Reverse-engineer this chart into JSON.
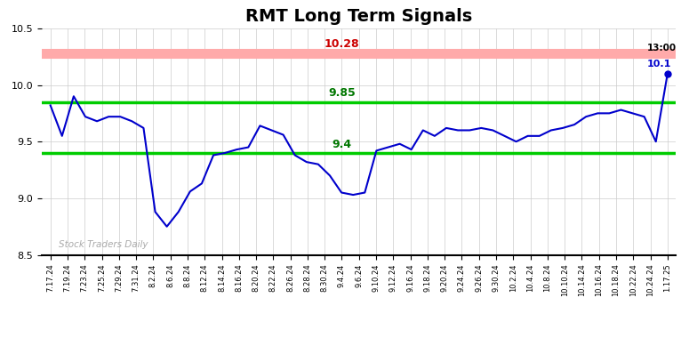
{
  "title": "RMT Long Term Signals",
  "title_fontsize": 14,
  "title_fontweight": "bold",
  "background_color": "#ffffff",
  "line_color": "#0000cc",
  "line_width": 1.5,
  "ylim": [
    8.5,
    10.5
  ],
  "yticks": [
    8.5,
    9.0,
    9.5,
    10.0,
    10.5
  ],
  "hline_red": 10.28,
  "hline_green_upper": 9.85,
  "hline_green_lower": 9.4,
  "hline_red_color": "#ffaaaa",
  "hline_green_color": "#00cc00",
  "label_red_text": "10.28",
  "label_red_color": "#cc0000",
  "label_green_upper_text": "9.85",
  "label_green_lower_text": "9.4",
  "label_green_color": "#007700",
  "watermark_text": "Stock Traders Daily",
  "watermark_color": "#aaaaaa",
  "annotation_time": "13:00",
  "annotation_value": "10.1",
  "annotation_color_time": "#000000",
  "annotation_color_value": "#0000cc",
  "xtick_labels": [
    "7.17.24",
    "7.19.24",
    "7.23.24",
    "7.25.24",
    "7.29.24",
    "7.31.24",
    "8.2.24",
    "8.6.24",
    "8.8.24",
    "8.12.24",
    "8.14.24",
    "8.16.24",
    "8.20.24",
    "8.22.24",
    "8.26.24",
    "8.28.24",
    "8.30.24",
    "9.4.24",
    "9.6.24",
    "9.10.24",
    "9.12.24",
    "9.16.24",
    "9.18.24",
    "9.20.24",
    "9.24.24",
    "9.26.24",
    "9.30.24",
    "10.2.24",
    "10.4.24",
    "10.8.24",
    "10.10.24",
    "10.14.24",
    "10.16.24",
    "10.18.24",
    "10.22.24",
    "10.24.24",
    "1.17.25"
  ],
  "ydata": [
    9.82,
    9.55,
    9.9,
    9.72,
    9.68,
    9.72,
    9.72,
    9.68,
    9.62,
    8.88,
    8.75,
    8.88,
    9.06,
    9.13,
    9.38,
    9.4,
    9.43,
    9.45,
    9.64,
    9.6,
    9.56,
    9.38,
    9.32,
    9.3,
    9.2,
    9.05,
    9.03,
    9.05,
    9.42,
    9.45,
    9.48,
    9.43,
    9.6,
    9.55,
    9.62,
    9.6,
    9.6,
    9.62,
    9.6,
    9.55,
    9.5,
    9.55,
    9.55,
    9.6,
    9.62,
    9.65,
    9.72,
    9.75,
    9.75,
    9.78,
    9.75,
    9.72,
    9.5,
    10.1
  ]
}
